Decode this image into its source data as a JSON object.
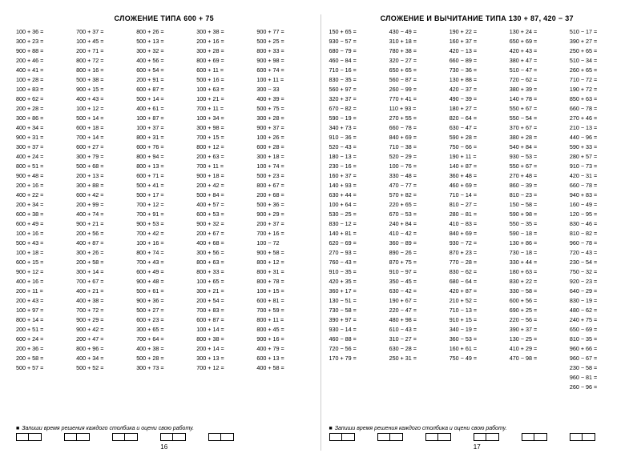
{
  "background_color": "#ffffff",
  "text_color": "#000000",
  "font_family": "Arial, sans-serif",
  "row_fontsize": 7.2,
  "title_fontsize": 9,
  "footer_fontsize": 7,
  "pages": [
    {
      "title": "СЛОЖЕНИЕ ТИПА 600 + 75",
      "page_number": "16",
      "footer": "Запиши время решения каждого столбика и оцени свою работу.",
      "box_pairs": 5,
      "columns": [
        [
          "100 + 36 =",
          "300 + 23 =",
          "900 + 88 =",
          "200 + 46 =",
          "400 + 41 =",
          "100 + 28 =",
          "100 + 83 =",
          "800 + 62 =",
          "200 + 28 =",
          "300 + 86 =",
          "400 + 34 =",
          "900 + 31 =",
          "300 + 37 =",
          "400 + 24 =",
          "800 + 51 =",
          "900 + 48 =",
          "200 + 16 =",
          "400 + 22 =",
          "200 + 34 =",
          "600 + 38 =",
          "600 + 49 =",
          "100 + 16 =",
          "500 + 43 =",
          "100 + 18 =",
          "600 + 15 =",
          "900 + 12 =",
          "400 + 16 =",
          "200 + 11 =",
          "200 + 43 =",
          "100 + 97 =",
          "800 + 14 =",
          "200 + 51 =",
          "600 + 24 =",
          "200 + 36 =",
          "200 + 58 =",
          "500 + 57 ="
        ],
        [
          "700 + 37 =",
          "100 + 45 =",
          "200 + 71 =",
          "800 + 72 =",
          "800 + 16 =",
          "500 + 38 =",
          "900 + 15 =",
          "400 + 43 =",
          "100 + 12 =",
          "500 + 14 =",
          "600 + 18 =",
          "700 + 14 =",
          "600 + 27 =",
          "300 + 79 =",
          "500 + 68 =",
          "200 + 13 =",
          "300 + 88 =",
          "600 + 42 =",
          "200 + 99 =",
          "400 + 74 =",
          "900 + 21 =",
          "200 + 56 =",
          "400 + 87 =",
          "300 + 26 =",
          "200 + 58 =",
          "300 + 14 =",
          "700 + 67 =",
          "400 + 21 =",
          "400 + 38 =",
          "700 + 72 =",
          "900 + 29 =",
          "900 + 42 =",
          "200 + 47 =",
          "800 + 96 =",
          "400 + 34 =",
          "500 + 52 ="
        ],
        [
          "800 + 26 =",
          "500 + 13 =",
          "300 + 32 =",
          "400 + 56 =",
          "600 + 54 =",
          "200 + 91 =",
          "600 + 87 =",
          "500 + 14 =",
          "400 + 61 =",
          "100 + 87 =",
          "100 + 37 =",
          "800 + 31 =",
          "600 + 76 =",
          "800 + 94 =",
          "800 + 13 =",
          "600 + 71 =",
          "500 + 41 =",
          "500 + 17 =",
          "700 + 12 =",
          "700 + 91 =",
          "900 + 53 =",
          "700 + 42 =",
          "100 + 16 =",
          "800 + 74 =",
          "700 + 43 =",
          "600 + 49 =",
          "900 + 48 =",
          "500 + 61 =",
          "900 + 36 =",
          "500 + 27 =",
          "600 + 23 =",
          "300 + 65 =",
          "700 + 64 =",
          "400 + 38 =",
          "500 + 28 =",
          "300 + 73 ="
        ],
        [
          "300 + 38 =",
          "200 + 16 =",
          "300 + 28 =",
          "800 + 69 =",
          "600 + 11 =",
          "500 + 16 =",
          "100 + 63 =",
          "100 + 21 =",
          "700 + 11 =",
          "100 + 34 =",
          "300 + 98 =",
          "700 + 15 =",
          "800 + 12 =",
          "200 + 63 =",
          "700 + 11 =",
          "900 + 18 =",
          "200 + 42 =",
          "500 + 84 =",
          "400 + 57 =",
          "600 + 53 =",
          "900 + 32 =",
          "200 + 67 =",
          "400 + 68 =",
          "300 + 56 =",
          "800 + 63 =",
          "800 + 33 =",
          "100 + 65 =",
          "300 + 21 =",
          "200 + 54 =",
          "700 + 83 =",
          "600 + 87 =",
          "100 + 14 =",
          "800 + 38 =",
          "200 + 14 =",
          "300 + 13 =",
          "700 + 12 ="
        ],
        [
          "900 + 77 =",
          "500 + 25 =",
          "800 + 33 =",
          "900 + 98 =",
          "600 + 74 =",
          "100 + 11 =",
          "300 − 33",
          "400 + 39 =",
          "500 + 75 =",
          "300 + 28 =",
          "900 + 37 =",
          "100 + 26 =",
          "600 + 28 =",
          "300 + 18 =",
          "100 + 74 =",
          "500 + 23 =",
          "800 + 67 =",
          "200 + 68 =",
          "500 + 36 =",
          "900 + 29 =",
          "200 + 37 =",
          "700 + 16 =",
          "100 − 72",
          "900 + 58 =",
          "800 + 12 =",
          "800 + 31 =",
          "800 + 78 =",
          "100 + 15 =",
          "600 + 81 =",
          "700 + 59 =",
          "800 + 11 =",
          "800 + 45 =",
          "900 + 16 =",
          "400 + 79 =",
          "600 + 13 =",
          "400 + 58 ="
        ]
      ]
    },
    {
      "title": "СЛОЖЕНИЕ И ВЫЧИТАНИЕ ТИПА 130 + 87, 420 − 37",
      "page_number": "17",
      "footer": "Запиши время решения каждого столбика и оцени свою работу.",
      "box_pairs": 6,
      "columns": [
        [
          "150 + 65 =",
          "930 − 57 =",
          "680 − 79 =",
          "460 − 84 =",
          "710 − 16 =",
          "830 − 35 =",
          "560 + 97 =",
          "320 + 37 =",
          "670 − 82 =",
          "590 − 19 =",
          "340 + 73 =",
          "910 − 36 =",
          "520 − 43 =",
          "180 − 13 =",
          "230 − 16 =",
          "160 + 37 =",
          "140 + 93 =",
          "630 + 44 =",
          "100 + 64 =",
          "530 − 25 =",
          "830 − 12 =",
          "140 + 81 =",
          "620 − 69 =",
          "270 − 93 =",
          "760 − 43 =",
          "910 − 35 =",
          "420 + 35 =",
          "360 + 17 =",
          "130 − 51 =",
          "730 − 58 =",
          "390 + 97 =",
          "930 − 14 =",
          "460 − 88 =",
          "720 − 56 =",
          "170 + 79 ="
        ],
        [
          "430 − 49 =",
          "310 + 18 =",
          "780 + 38 =",
          "320 − 27 =",
          "650 + 65 =",
          "560 − 87 =",
          "260 − 99 =",
          "770 + 41 =",
          "110 + 93 =",
          "270 + 55 =",
          "660 − 78 =",
          "840 + 69 =",
          "710 − 38 =",
          "520 − 29 =",
          "100 − 76 =",
          "330 − 48 =",
          "470 − 77 =",
          "570 + 82 =",
          "220 + 65 =",
          "670 − 53 =",
          "240 + 84 =",
          "410 − 42 =",
          "360 − 89 =",
          "890 − 26 =",
          "870 + 75 =",
          "910 − 97 =",
          "350 − 45 =",
          "630 − 42 =",
          "190 + 67 =",
          "220 − 47 =",
          "480 + 98 =",
          "610 − 43 =",
          "310 − 27 =",
          "630 − 28 =",
          "250 + 31 ="
        ],
        [
          "190 + 22 =",
          "160 + 37 =",
          "420 − 13 =",
          "660 − 89 =",
          "730 − 36 =",
          "130 + 88 =",
          "420 − 37 =",
          "490 − 39 =",
          "180 + 27 =",
          "820 − 64 =",
          "630 − 47 =",
          "590 + 28 =",
          "750 − 66 =",
          "190 + 11 =",
          "140 + 87 =",
          "360 + 48 =",
          "460 + 69 =",
          "710 − 14 =",
          "810 − 27 =",
          "280 − 81 =",
          "410 − 83 =",
          "840 + 69 =",
          "930 − 72 =",
          "870 + 23 =",
          "770 − 28 =",
          "830 − 62 =",
          "680 − 64 =",
          "420 + 87 =",
          "210 + 52 =",
          "710 − 13 =",
          "910 + 15 =",
          "340 − 19 =",
          "360 − 53 =",
          "160 + 61 =",
          "750 − 49 ="
        ],
        [
          "130 + 24 =",
          "650 + 69 =",
          "420 + 43 =",
          "380 + 47 =",
          "510 − 47 =",
          "720 − 62 =",
          "380 + 39 =",
          "140 + 78 =",
          "550 + 67 =",
          "550 − 54 =",
          "370 + 67 =",
          "380 + 28 =",
          "540 + 84 =",
          "930 − 53 =",
          "550 + 67 =",
          "270 + 48 =",
          "860 − 39 =",
          "810 − 23 =",
          "150 − 58 =",
          "590 + 98 =",
          "550 − 35 =",
          "590 − 18 =",
          "130 + 86 =",
          "730 − 18 =",
          "330 + 44 =",
          "180 + 63 =",
          "830 + 22 =",
          "330 − 58 =",
          "600 + 56 =",
          "690 + 25 =",
          "220 − 56 =",
          "390 + 37 =",
          "130 − 25 =",
          "410 + 29 =",
          "470 − 98 ="
        ],
        [
          "510 − 17 =",
          "390 + 27 =",
          "250 + 65 =",
          "510 − 34 =",
          "260 + 65 =",
          "710 − 72 =",
          "190 + 72 =",
          "850 + 63 =",
          "660 − 78 =",
          "270 + 46 =",
          "210 − 13 =",
          "440 − 96 =",
          "590 + 33 =",
          "280 + 57 =",
          "910 − 73 =",
          "420 − 31 =",
          "660 − 78 =",
          "940 + 83 =",
          "160 − 49 =",
          "120 − 95 =",
          "830 − 46 =",
          "810 − 82 =",
          "960 − 78 =",
          "720 − 43 =",
          "230 − 54 =",
          "750 − 32 =",
          "920 − 23 =",
          "640 − 29 =",
          "830 − 19 =",
          "480 − 62 =",
          "240 + 75 =",
          "650 − 69 =",
          "810 − 35 =",
          "960 + 66 =",
          "960 − 67 =",
          "230 − 58 =",
          "960 − 81 =",
          "260 − 96 ="
        ]
      ]
    }
  ]
}
